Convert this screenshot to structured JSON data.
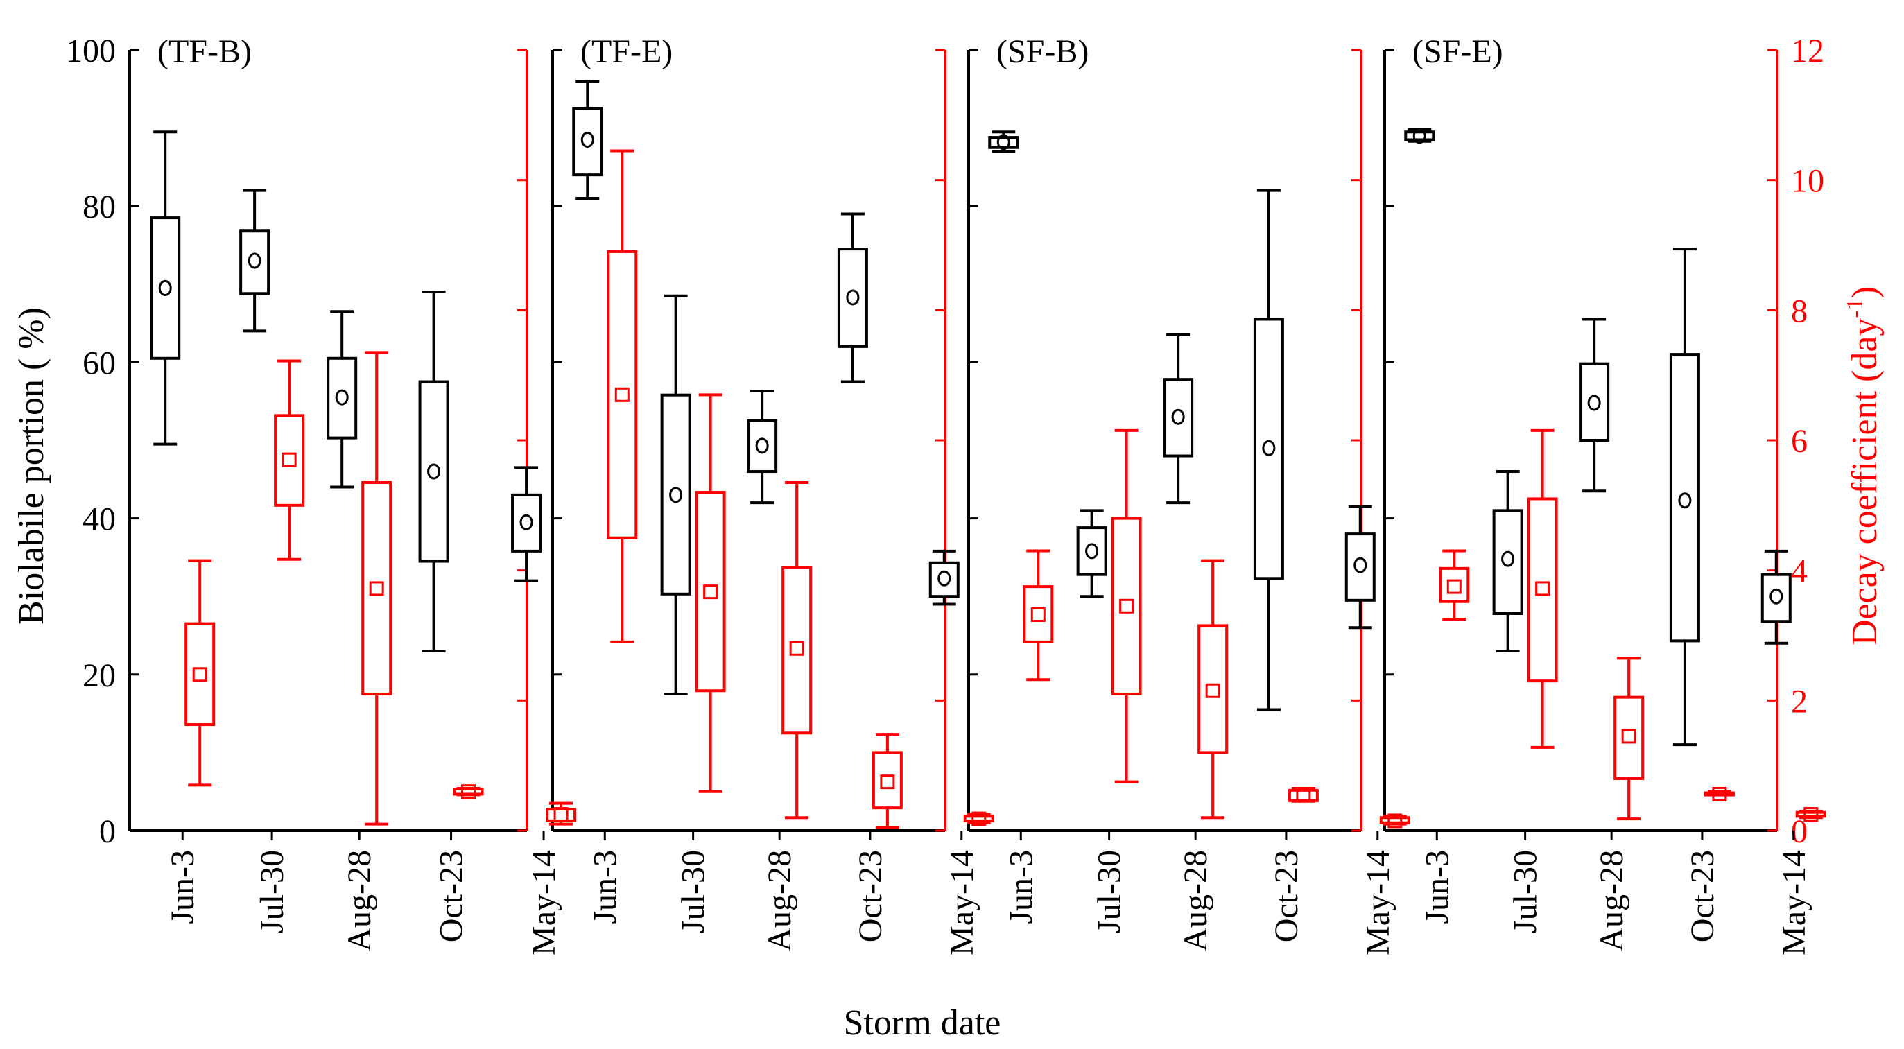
{
  "chart_data": {
    "type": "box",
    "xlabel": "Storm date",
    "ylabel_left": "Biolabile portion ( %)",
    "ylabel_right_main": "Decay coefficient (day",
    "ylabel_right_sup": "-1",
    "ylabel_right_close": ")",
    "categories": [
      "Jun-3",
      "Jul-30",
      "Aug-28",
      "Oct-23",
      "May-14"
    ],
    "left_axis": {
      "range": [
        0,
        100
      ],
      "ticks": [
        "0",
        "20",
        "40",
        "60",
        "80",
        "100"
      ],
      "tick_values": [
        0,
        20,
        40,
        60,
        80,
        100
      ]
    },
    "right_axis": {
      "range": [
        0,
        12
      ],
      "ticks": [
        "0",
        "2",
        "4",
        "6",
        "8",
        "10",
        "12"
      ],
      "tick_values": [
        0,
        2,
        4,
        6,
        8,
        10,
        12
      ]
    },
    "colors": {
      "biolabile": "#000000",
      "decay": "#ff0000"
    },
    "panels": [
      {
        "label": "(TF-B)",
        "biolabile": [
          {
            "category": "Jun-3",
            "min": 49.5,
            "q1": 60.5,
            "q3": 78.5,
            "max": 89.5,
            "mean": 69.5
          },
          {
            "category": "Jul-30",
            "min": 64,
            "q1": 68.8,
            "q3": 76.8,
            "max": 82,
            "mean": 73
          },
          {
            "category": "Aug-28",
            "min": 44,
            "q1": 50.3,
            "q3": 60.5,
            "max": 66.5,
            "mean": 55.5
          },
          {
            "category": "Oct-23",
            "min": 23,
            "q1": 34.5,
            "q3": 57.5,
            "max": 69,
            "mean": 46
          },
          {
            "category": "May-14",
            "min": 32,
            "q1": 35.8,
            "q3": 43,
            "max": 46.5,
            "mean": 39.5
          }
        ],
        "decay": [
          {
            "category": "Jun-3",
            "min": 0.7,
            "q1": 1.63,
            "q3": 3.18,
            "max": 4.15,
            "mean": 2.4
          },
          {
            "category": "Jul-30",
            "min": 4.17,
            "q1": 5.0,
            "q3": 6.38,
            "max": 7.22,
            "mean": 5.7
          },
          {
            "category": "Aug-28",
            "min": 0.1,
            "q1": 2.1,
            "q3": 5.35,
            "max": 7.35,
            "mean": 3.72
          },
          {
            "category": "Oct-23",
            "min": 0.55,
            "q1": 0.56,
            "q3": 0.64,
            "max": 0.65,
            "mean": 0.6
          },
          {
            "category": "May-14",
            "min": 0.1,
            "q1": 0.15,
            "q3": 0.33,
            "max": 0.42,
            "mean": 0.25
          }
        ]
      },
      {
        "label": "(TF-E)",
        "biolabile": [
          {
            "category": "Jun-3",
            "min": 81,
            "q1": 84,
            "q3": 92.5,
            "max": 96,
            "mean": 88.5
          },
          {
            "category": "Jul-30",
            "min": 17.5,
            "q1": 30.3,
            "q3": 55.8,
            "max": 68.5,
            "mean": 43
          },
          {
            "category": "Aug-28",
            "min": 42,
            "q1": 46,
            "q3": 52.5,
            "max": 56.3,
            "mean": 49.3
          },
          {
            "category": "Oct-23",
            "min": 57.5,
            "q1": 62,
            "q3": 74.5,
            "max": 79,
            "mean": 68.3
          },
          {
            "category": "May-14",
            "min": 29,
            "q1": 30,
            "q3": 34.3,
            "max": 35.8,
            "mean": 32.3
          }
        ],
        "decay": [
          {
            "category": "Jun-3",
            "min": 2.9,
            "q1": 4.5,
            "q3": 8.9,
            "max": 10.45,
            "mean": 6.7
          },
          {
            "category": "Jul-30",
            "min": 0.6,
            "q1": 2.15,
            "q3": 5.2,
            "max": 6.7,
            "mean": 3.67
          },
          {
            "category": "Aug-28",
            "min": 0.2,
            "q1": 1.5,
            "q3": 4.05,
            "max": 5.35,
            "mean": 2.8
          },
          {
            "category": "Oct-23",
            "min": 0.05,
            "q1": 0.35,
            "q3": 1.2,
            "max": 1.48,
            "mean": 0.75
          },
          {
            "category": "May-14",
            "min": 0.12,
            "q1": 0.15,
            "q3": 0.22,
            "max": 0.25,
            "mean": 0.18
          }
        ]
      },
      {
        "label": "(SF-B)",
        "biolabile": [
          {
            "category": "Jun-3",
            "min": 87,
            "q1": 87.5,
            "q3": 88.8,
            "max": 89.5,
            "mean": 88.2
          },
          {
            "category": "Jul-30",
            "min": 30,
            "q1": 32.8,
            "q3": 38.8,
            "max": 41,
            "mean": 35.8
          },
          {
            "category": "Aug-28",
            "min": 42,
            "q1": 48,
            "q3": 57.8,
            "max": 63.5,
            "mean": 53
          },
          {
            "category": "Oct-23",
            "min": 15.5,
            "q1": 32.3,
            "q3": 65.5,
            "max": 82,
            "mean": 49
          },
          {
            "category": "May-14",
            "min": 26,
            "q1": 29.5,
            "q3": 38,
            "max": 41.5,
            "mean": 34
          }
        ],
        "decay": [
          {
            "category": "Jun-3",
            "min": 2.32,
            "q1": 2.9,
            "q3": 3.75,
            "max": 4.3,
            "mean": 3.32
          },
          {
            "category": "Jul-30",
            "min": 0.75,
            "q1": 2.1,
            "q3": 4.8,
            "max": 6.15,
            "mean": 3.45
          },
          {
            "category": "Aug-28",
            "min": 0.2,
            "q1": 1.2,
            "q3": 3.15,
            "max": 4.15,
            "mean": 2.15
          },
          {
            "category": "Oct-23",
            "min": 0.45,
            "q1": 0.46,
            "q3": 0.62,
            "max": 0.65,
            "mean": 0.55
          },
          {
            "category": "May-14",
            "min": 0.1,
            "q1": 0.12,
            "q3": 0.2,
            "max": 0.22,
            "mean": 0.15
          }
        ]
      },
      {
        "label": "(SF-E)",
        "biolabile": [
          {
            "category": "Jun-3",
            "min": 88.3,
            "q1": 88.5,
            "q3": 89.5,
            "max": 89.8,
            "mean": 89
          },
          {
            "category": "Jul-30",
            "min": 23,
            "q1": 27.8,
            "q3": 41,
            "max": 46,
            "mean": 34.8
          },
          {
            "category": "Aug-28",
            "min": 43.5,
            "q1": 50,
            "q3": 59.8,
            "max": 65.5,
            "mean": 54.8
          },
          {
            "category": "Oct-23",
            "min": 11,
            "q1": 24.3,
            "q3": 61,
            "max": 74.5,
            "mean": 42.3
          },
          {
            "category": "May-14",
            "min": 24,
            "q1": 26.8,
            "q3": 32.8,
            "max": 35.8,
            "mean": 30
          }
        ],
        "decay": [
          {
            "category": "Jun-3",
            "min": 3.25,
            "q1": 3.52,
            "q3": 4.03,
            "max": 4.3,
            "mean": 3.75
          },
          {
            "category": "Jul-30",
            "min": 1.28,
            "q1": 2.3,
            "q3": 5.1,
            "max": 6.15,
            "mean": 3.72
          },
          {
            "category": "Aug-28",
            "min": 0.18,
            "q1": 0.8,
            "q3": 2.05,
            "max": 2.65,
            "mean": 1.45
          },
          {
            "category": "Oct-23",
            "min": 0.55,
            "q1": 0.55,
            "q3": 0.58,
            "max": 0.6,
            "mean": 0.56
          },
          {
            "category": "May-14",
            "min": 0.2,
            "q1": 0.22,
            "q3": 0.28,
            "max": 0.3,
            "mean": 0.25
          }
        ]
      }
    ]
  }
}
